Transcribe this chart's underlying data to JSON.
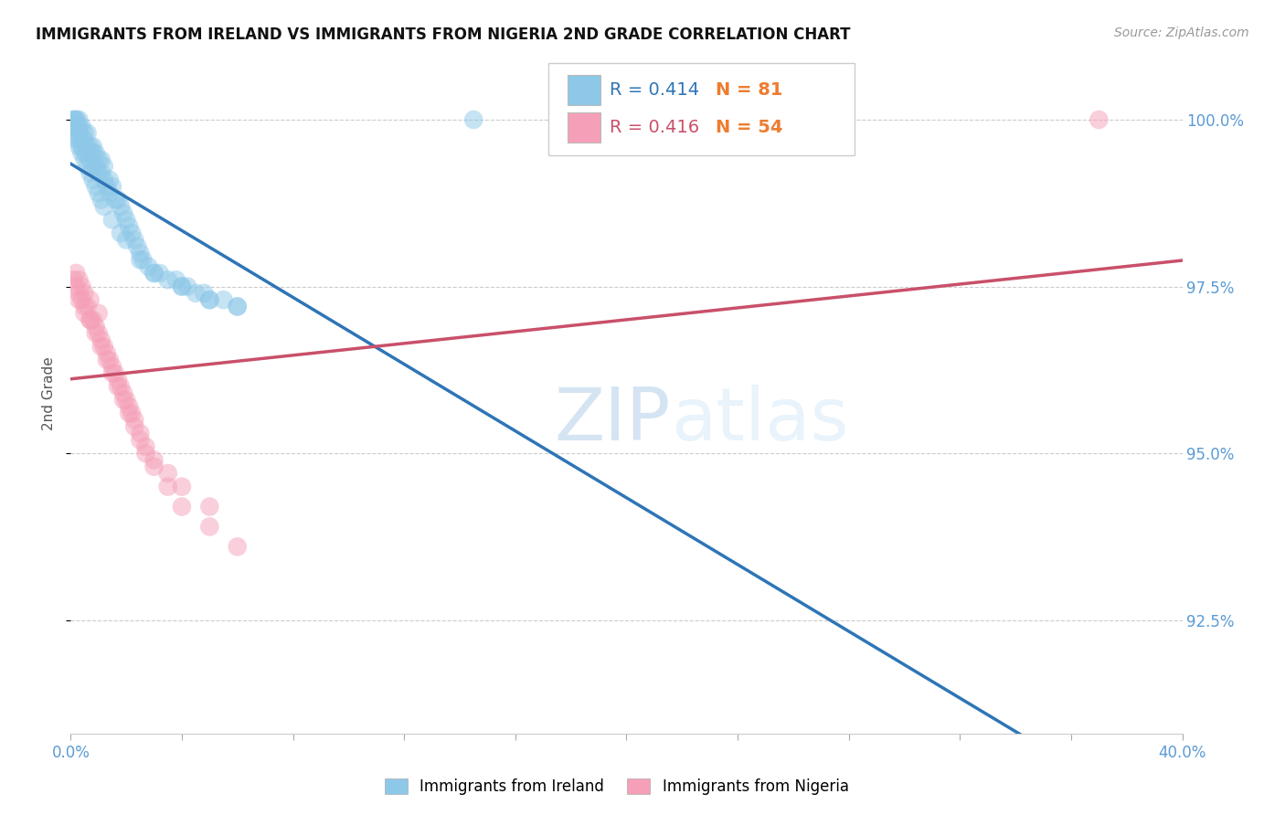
{
  "title": "IMMIGRANTS FROM IRELAND VS IMMIGRANTS FROM NIGERIA 2ND GRADE CORRELATION CHART",
  "source": "Source: ZipAtlas.com",
  "ylabel": "2nd Grade",
  "right_yticks": [
    92.5,
    95.0,
    97.5,
    100.0
  ],
  "right_yticklabels": [
    "92.5%",
    "95.0%",
    "97.5%",
    "100.0%"
  ],
  "xlim": [
    0.0,
    40.0
  ],
  "ylim": [
    90.8,
    101.0
  ],
  "xtick_vals": [
    0,
    4,
    8,
    12,
    16,
    20,
    24,
    28,
    32,
    36,
    40
  ],
  "color_ireland": "#8ec8e8",
  "color_ireland_line": "#2e75b6",
  "color_nigeria": "#f5a0b8",
  "color_nigeria_line": "#c9506a",
  "color_axis_text": "#5b9bd5",
  "color_N": "#ed7d31",
  "R_ireland": "0.414",
  "N_ireland": "81",
  "R_nigeria": "0.416",
  "N_nigeria": "54",
  "legend_label_ireland": "Immigrants from Ireland",
  "legend_label_nigeria": "Immigrants from Nigeria",
  "watermark": "ZIPatlas",
  "figsize": [
    14.06,
    8.92
  ],
  "dpi": 100,
  "ireland_x": [
    0.1,
    0.1,
    0.1,
    0.2,
    0.2,
    0.2,
    0.2,
    0.3,
    0.3,
    0.3,
    0.3,
    0.4,
    0.4,
    0.4,
    0.5,
    0.5,
    0.5,
    0.6,
    0.6,
    0.6,
    0.7,
    0.7,
    0.8,
    0.8,
    0.8,
    0.9,
    0.9,
    1.0,
    1.0,
    1.1,
    1.1,
    1.2,
    1.2,
    1.3,
    1.4,
    1.4,
    1.5,
    1.6,
    1.7,
    1.8,
    1.9,
    2.0,
    2.1,
    2.2,
    2.3,
    2.4,
    2.5,
    2.6,
    2.8,
    3.0,
    3.2,
    3.5,
    3.8,
    4.0,
    4.2,
    4.5,
    4.8,
    5.0,
    5.5,
    6.0,
    0.1,
    0.2,
    0.3,
    0.4,
    0.5,
    0.6,
    0.7,
    0.8,
    0.9,
    1.0,
    1.1,
    1.2,
    1.5,
    1.8,
    2.0,
    2.5,
    3.0,
    4.0,
    5.0,
    6.0,
    14.5
  ],
  "ireland_y": [
    99.9,
    100.0,
    100.0,
    99.8,
    99.9,
    100.0,
    100.0,
    99.7,
    99.8,
    99.9,
    100.0,
    99.6,
    99.7,
    99.9,
    99.5,
    99.7,
    99.8,
    99.5,
    99.6,
    99.8,
    99.4,
    99.6,
    99.3,
    99.5,
    99.6,
    99.3,
    99.5,
    99.2,
    99.4,
    99.2,
    99.4,
    99.1,
    99.3,
    99.0,
    98.9,
    99.1,
    99.0,
    98.8,
    98.8,
    98.7,
    98.6,
    98.5,
    98.4,
    98.3,
    98.2,
    98.1,
    98.0,
    97.9,
    97.8,
    97.7,
    97.7,
    97.6,
    97.6,
    97.5,
    97.5,
    97.4,
    97.4,
    97.3,
    97.3,
    97.2,
    99.9,
    99.7,
    99.6,
    99.5,
    99.4,
    99.3,
    99.2,
    99.1,
    99.0,
    98.9,
    98.8,
    98.7,
    98.5,
    98.3,
    98.2,
    97.9,
    97.7,
    97.5,
    97.3,
    97.2,
    100.0
  ],
  "nigeria_x": [
    0.1,
    0.2,
    0.2,
    0.3,
    0.3,
    0.4,
    0.4,
    0.5,
    0.5,
    0.6,
    0.7,
    0.7,
    0.8,
    0.9,
    1.0,
    1.0,
    1.1,
    1.2,
    1.3,
    1.4,
    1.5,
    1.6,
    1.7,
    1.8,
    1.9,
    2.0,
    2.1,
    2.2,
    2.3,
    2.5,
    2.7,
    3.0,
    3.5,
    4.0,
    5.0,
    0.3,
    0.5,
    0.7,
    0.9,
    1.1,
    1.3,
    1.5,
    1.7,
    1.9,
    2.1,
    2.3,
    2.5,
    2.7,
    3.0,
    3.5,
    4.0,
    5.0,
    6.0,
    37.0
  ],
  "nigeria_y": [
    97.6,
    97.5,
    97.7,
    97.4,
    97.6,
    97.3,
    97.5,
    97.2,
    97.4,
    97.2,
    97.0,
    97.3,
    97.0,
    96.9,
    96.8,
    97.1,
    96.7,
    96.6,
    96.5,
    96.4,
    96.3,
    96.2,
    96.1,
    96.0,
    95.9,
    95.8,
    95.7,
    95.6,
    95.5,
    95.3,
    95.1,
    94.9,
    94.7,
    94.5,
    94.2,
    97.3,
    97.1,
    97.0,
    96.8,
    96.6,
    96.4,
    96.2,
    96.0,
    95.8,
    95.6,
    95.4,
    95.2,
    95.0,
    94.8,
    94.5,
    94.2,
    93.9,
    93.6,
    100.0
  ]
}
